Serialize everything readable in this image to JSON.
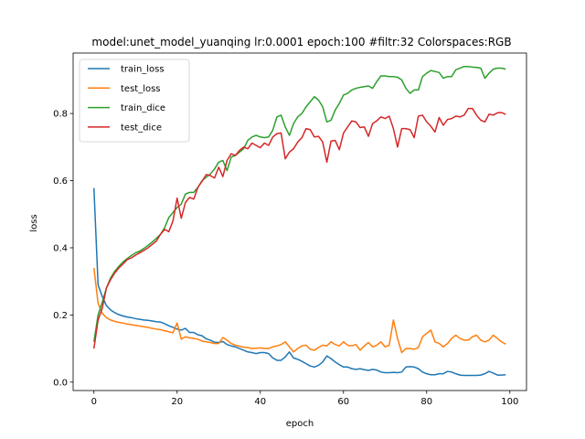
{
  "chart_data": {
    "type": "line",
    "title": "model:unet_model_yuanqing lr:0.0001 epoch:100 #filtr:32 Colorspaces:RGB",
    "xlabel": "epoch",
    "ylabel": "loss",
    "xlim": [
      -5.0,
      104.0
    ],
    "ylim": [
      -0.025,
      0.98
    ],
    "xticks": [
      0,
      20,
      40,
      60,
      80,
      100
    ],
    "yticks": [
      0.0,
      0.2,
      0.4,
      0.6,
      0.8
    ],
    "grid": false,
    "legend_position": "upper-left",
    "series": [
      {
        "name": "train_loss",
        "color": "#1f77b4",
        "x": [
          0,
          1,
          2,
          3,
          4,
          5,
          6,
          7,
          8,
          9,
          10,
          11,
          12,
          13,
          14,
          15,
          16,
          17,
          18,
          19,
          20,
          21,
          22,
          23,
          24,
          25,
          26,
          27,
          28,
          29,
          30,
          31,
          32,
          33,
          34,
          35,
          36,
          37,
          38,
          39,
          40,
          41,
          42,
          43,
          44,
          45,
          46,
          47,
          48,
          49,
          50,
          51,
          52,
          53,
          54,
          55,
          56,
          57,
          58,
          59,
          60,
          61,
          62,
          63,
          64,
          65,
          66,
          67,
          68,
          69,
          70,
          71,
          72,
          73,
          74,
          75,
          76,
          77,
          78,
          79,
          80,
          81,
          82,
          83,
          84,
          85,
          86,
          87,
          88,
          89,
          90,
          91,
          92,
          93,
          94,
          95,
          96,
          97,
          98,
          99
        ],
        "y": [
          0.578,
          0.29,
          0.255,
          0.228,
          0.215,
          0.207,
          0.201,
          0.197,
          0.194,
          0.192,
          0.189,
          0.187,
          0.185,
          0.184,
          0.182,
          0.18,
          0.179,
          0.174,
          0.168,
          0.163,
          0.158,
          0.155,
          0.16,
          0.148,
          0.148,
          0.141,
          0.138,
          0.129,
          0.125,
          0.119,
          0.118,
          0.121,
          0.112,
          0.108,
          0.105,
          0.1,
          0.095,
          0.09,
          0.088,
          0.085,
          0.088,
          0.088,
          0.085,
          0.072,
          0.065,
          0.065,
          0.075,
          0.09,
          0.072,
          0.068,
          0.062,
          0.055,
          0.048,
          0.045,
          0.05,
          0.06,
          0.078,
          0.07,
          0.06,
          0.052,
          0.045,
          0.045,
          0.04,
          0.038,
          0.04,
          0.037,
          0.035,
          0.038,
          0.036,
          0.03,
          0.028,
          0.028,
          0.029,
          0.028,
          0.03,
          0.045,
          0.046,
          0.045,
          0.04,
          0.03,
          0.025,
          0.022,
          0.022,
          0.025,
          0.025,
          0.032,
          0.03,
          0.025,
          0.021,
          0.02,
          0.02,
          0.02,
          0.02,
          0.021,
          0.025,
          0.032,
          0.027,
          0.021,
          0.021,
          0.022
        ]
      },
      {
        "name": "test_loss",
        "color": "#ff7f0e",
        "x": [
          0,
          1,
          2,
          3,
          4,
          5,
          6,
          7,
          8,
          9,
          10,
          11,
          12,
          13,
          14,
          15,
          16,
          17,
          18,
          19,
          20,
          21,
          22,
          23,
          24,
          25,
          26,
          27,
          28,
          29,
          30,
          31,
          32,
          33,
          34,
          35,
          36,
          37,
          38,
          39,
          40,
          41,
          42,
          43,
          44,
          45,
          46,
          47,
          48,
          49,
          50,
          51,
          52,
          53,
          54,
          55,
          56,
          57,
          58,
          59,
          60,
          61,
          62,
          63,
          64,
          65,
          66,
          67,
          68,
          69,
          70,
          71,
          72,
          73,
          74,
          75,
          76,
          77,
          78,
          79,
          80,
          81,
          82,
          83,
          84,
          85,
          86,
          87,
          88,
          89,
          90,
          91,
          92,
          93,
          94,
          95,
          96,
          97,
          98,
          99
        ],
        "y": [
          0.34,
          0.235,
          0.205,
          0.192,
          0.185,
          0.181,
          0.178,
          0.176,
          0.173,
          0.171,
          0.169,
          0.167,
          0.165,
          0.163,
          0.16,
          0.158,
          0.156,
          0.153,
          0.15,
          0.147,
          0.176,
          0.128,
          0.135,
          0.132,
          0.13,
          0.128,
          0.122,
          0.12,
          0.118,
          0.115,
          0.115,
          0.133,
          0.125,
          0.115,
          0.11,
          0.107,
          0.104,
          0.103,
          0.1,
          0.101,
          0.102,
          0.1,
          0.1,
          0.105,
          0.108,
          0.112,
          0.12,
          0.105,
          0.09,
          0.1,
          0.108,
          0.11,
          0.098,
          0.095,
          0.103,
          0.11,
          0.108,
          0.12,
          0.112,
          0.108,
          0.12,
          0.11,
          0.108,
          0.112,
          0.095,
          0.108,
          0.118,
          0.105,
          0.11,
          0.12,
          0.105,
          0.11,
          0.185,
          0.13,
          0.088,
          0.1,
          0.1,
          0.098,
          0.103,
          0.135,
          0.145,
          0.155,
          0.12,
          0.115,
          0.105,
          0.115,
          0.13,
          0.14,
          0.13,
          0.125,
          0.125,
          0.135,
          0.14,
          0.125,
          0.12,
          0.125,
          0.14,
          0.13,
          0.12,
          0.113
        ]
      },
      {
        "name": "train_dice",
        "color": "#2ca02c",
        "x": [
          0,
          1,
          2,
          3,
          4,
          5,
          6,
          7,
          8,
          9,
          10,
          11,
          12,
          13,
          14,
          15,
          16,
          17,
          18,
          19,
          20,
          21,
          22,
          23,
          24,
          25,
          26,
          27,
          28,
          29,
          30,
          31,
          32,
          33,
          34,
          35,
          36,
          37,
          38,
          39,
          40,
          41,
          42,
          43,
          44,
          45,
          46,
          47,
          48,
          49,
          50,
          51,
          52,
          53,
          54,
          55,
          56,
          57,
          58,
          59,
          60,
          61,
          62,
          63,
          64,
          65,
          66,
          67,
          68,
          69,
          70,
          71,
          72,
          73,
          74,
          75,
          76,
          77,
          78,
          79,
          80,
          81,
          82,
          83,
          84,
          85,
          86,
          87,
          88,
          89,
          90,
          91,
          92,
          93,
          94,
          95,
          96,
          97,
          98,
          99
        ],
        "y": [
          0.12,
          0.2,
          0.238,
          0.28,
          0.31,
          0.33,
          0.345,
          0.358,
          0.368,
          0.377,
          0.385,
          0.39,
          0.398,
          0.407,
          0.417,
          0.428,
          0.44,
          0.46,
          0.49,
          0.505,
          0.52,
          0.53,
          0.56,
          0.565,
          0.565,
          0.58,
          0.6,
          0.61,
          0.62,
          0.635,
          0.655,
          0.66,
          0.63,
          0.67,
          0.675,
          0.685,
          0.695,
          0.72,
          0.73,
          0.735,
          0.73,
          0.728,
          0.73,
          0.75,
          0.79,
          0.795,
          0.76,
          0.735,
          0.77,
          0.79,
          0.8,
          0.82,
          0.835,
          0.85,
          0.84,
          0.82,
          0.775,
          0.78,
          0.81,
          0.83,
          0.855,
          0.86,
          0.87,
          0.875,
          0.878,
          0.88,
          0.882,
          0.875,
          0.895,
          0.912,
          0.912,
          0.91,
          0.91,
          0.908,
          0.9,
          0.875,
          0.86,
          0.87,
          0.87,
          0.91,
          0.92,
          0.928,
          0.925,
          0.922,
          0.905,
          0.91,
          0.91,
          0.93,
          0.935,
          0.94,
          0.94,
          0.938,
          0.937,
          0.935,
          0.905,
          0.92,
          0.932,
          0.935,
          0.935,
          0.932
        ]
      },
      {
        "name": "test_dice",
        "color": "#d62728",
        "x": [
          0,
          1,
          2,
          3,
          4,
          5,
          6,
          7,
          8,
          9,
          10,
          11,
          12,
          13,
          14,
          15,
          16,
          17,
          18,
          19,
          20,
          21,
          22,
          23,
          24,
          25,
          26,
          27,
          28,
          29,
          30,
          31,
          32,
          33,
          34,
          35,
          36,
          37,
          38,
          39,
          40,
          41,
          42,
          43,
          44,
          45,
          46,
          47,
          48,
          49,
          50,
          51,
          52,
          53,
          54,
          55,
          56,
          57,
          58,
          59,
          60,
          61,
          62,
          63,
          64,
          65,
          66,
          67,
          68,
          69,
          70,
          71,
          72,
          73,
          74,
          75,
          76,
          77,
          78,
          79,
          80,
          81,
          82,
          83,
          84,
          85,
          86,
          87,
          88,
          89,
          90,
          91,
          92,
          93,
          94,
          95,
          96,
          97,
          98,
          99
        ],
        "y": [
          0.1,
          0.185,
          0.22,
          0.28,
          0.305,
          0.325,
          0.34,
          0.352,
          0.365,
          0.37,
          0.378,
          0.385,
          0.392,
          0.4,
          0.41,
          0.42,
          0.44,
          0.455,
          0.448,
          0.48,
          0.548,
          0.488,
          0.535,
          0.55,
          0.545,
          0.58,
          0.598,
          0.618,
          0.615,
          0.608,
          0.64,
          0.612,
          0.66,
          0.68,
          0.675,
          0.69,
          0.7,
          0.695,
          0.712,
          0.705,
          0.698,
          0.712,
          0.705,
          0.73,
          0.74,
          0.742,
          0.665,
          0.685,
          0.695,
          0.715,
          0.728,
          0.755,
          0.752,
          0.73,
          0.732,
          0.715,
          0.655,
          0.718,
          0.72,
          0.692,
          0.742,
          0.76,
          0.778,
          0.775,
          0.758,
          0.76,
          0.732,
          0.77,
          0.778,
          0.79,
          0.785,
          0.792,
          0.755,
          0.7,
          0.755,
          0.755,
          0.752,
          0.728,
          0.792,
          0.795,
          0.775,
          0.762,
          0.745,
          0.788,
          0.765,
          0.782,
          0.785,
          0.792,
          0.79,
          0.795,
          0.815,
          0.815,
          0.795,
          0.78,
          0.775,
          0.798,
          0.795,
          0.802,
          0.803,
          0.797
        ]
      }
    ]
  }
}
